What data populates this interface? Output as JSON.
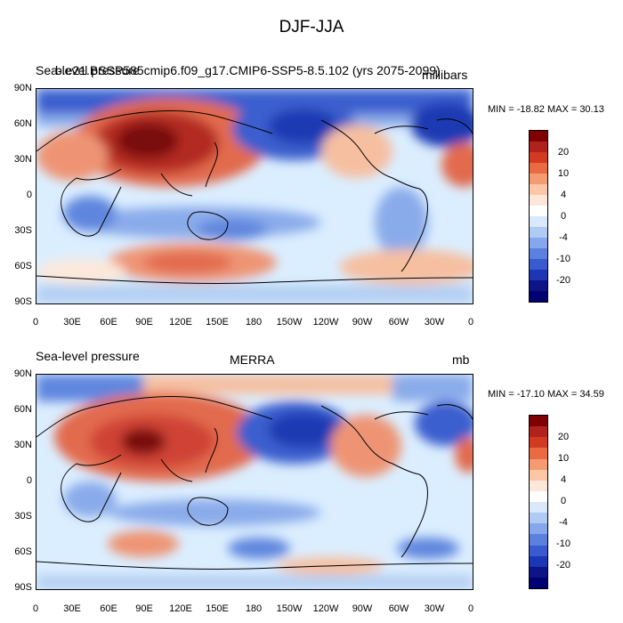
{
  "title": "DJF-JJA",
  "colors": [
    "#fde8da",
    "#f6bfa0",
    "#ee9474",
    "#e26a4e",
    "#cf4334",
    "#b32a23",
    "#7a0a0d",
    "#dbeeff",
    "#b4cff2",
    "#8aabea",
    "#5f86de",
    "#3a5fce",
    "#1f3bb3",
    "#0a1488"
  ],
  "land_color_hint": "#c43327",
  "panels": [
    {
      "id": "top",
      "left_title": "Sea-level pressure",
      "left_title_overlay": "b.e21.BSSP585cmip6.f09_g17.CMIP6-SSP5-8.5.102 (yrs 2075-2099)",
      "center_title": "",
      "units": "millibars",
      "stats": "MIN = -18.82 MAX =  30.13"
    },
    {
      "id": "bottom",
      "left_title": "Sea-level pressure",
      "center_title": "MERRA",
      "units": "mb",
      "stats": "MIN = -17.10 MAX =  34.59"
    }
  ],
  "lat_ticks": [
    "90N",
    "60N",
    "30N",
    "0",
    "30S",
    "60S",
    "90S"
  ],
  "lon_ticks": [
    "0",
    "30E",
    "60E",
    "90E",
    "120E",
    "150E",
    "180",
    "150W",
    "120W",
    "90W",
    "60W",
    "30W",
    "0"
  ],
  "colorbar_labels": [
    "20",
    "10",
    "4",
    "0",
    "-4",
    "-10",
    "-20"
  ],
  "colorbar_colors": [
    "#7f0000",
    "#b0221e",
    "#d23a22",
    "#ea6a42",
    "#f59b72",
    "#fbc7a6",
    "#fde7da",
    "#ffffff",
    "#d9e8fb",
    "#b0cbf3",
    "#86a7ec",
    "#5b80dd",
    "#3a5bd0",
    "#1c36b5",
    "#0c1486",
    "#000070"
  ]
}
